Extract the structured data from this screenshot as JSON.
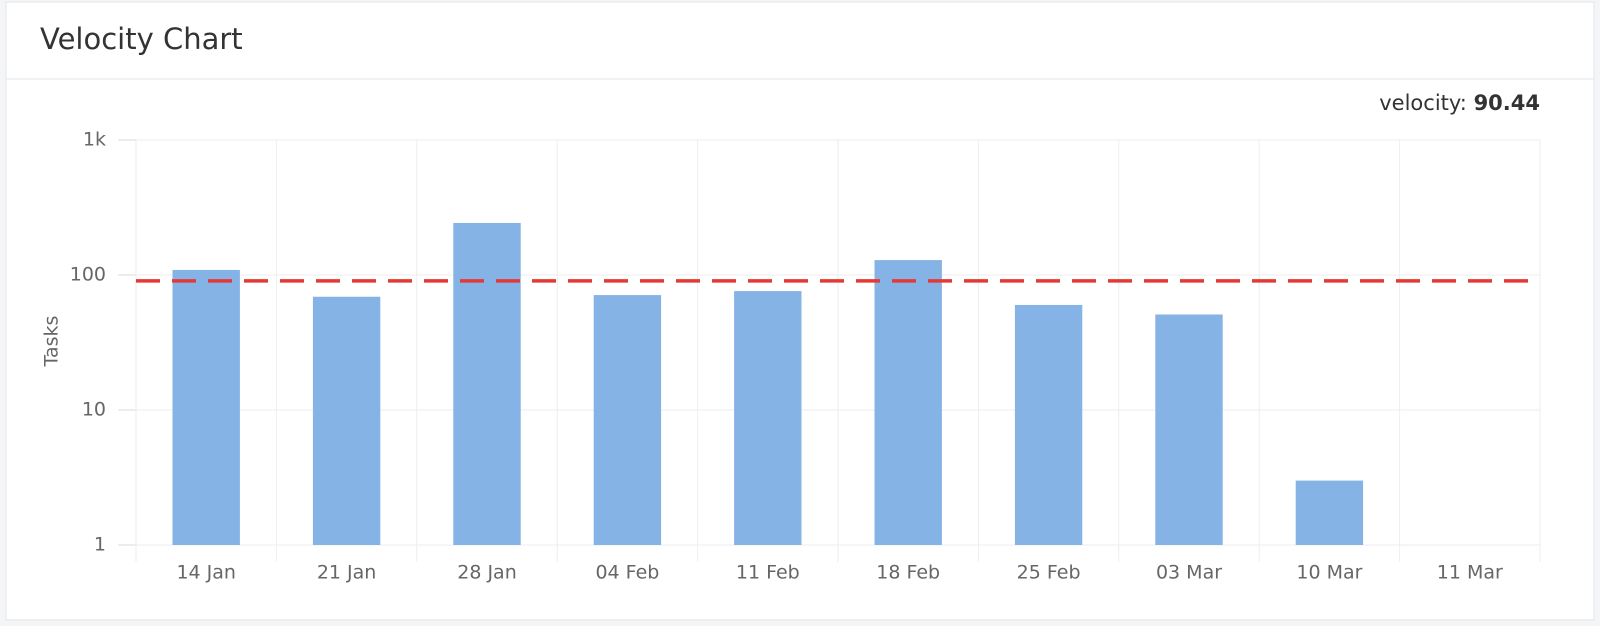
{
  "chart_data": {
    "type": "bar",
    "title": "Velocity Chart",
    "y_label": "Tasks",
    "categories": [
      "14 Jan",
      "21 Jan",
      "28 Jan",
      "04 Feb",
      "11 Feb",
      "18 Feb",
      "25 Feb",
      "03 Mar",
      "10 Mar",
      "11 Mar"
    ],
    "values": [
      109,
      69,
      243,
      71,
      76,
      129,
      60,
      51,
      3,
      null
    ],
    "color": "#86b3e6",
    "log_scale": true,
    "ylim": [
      1,
      1000
    ],
    "yticks": [
      1,
      10,
      100,
      {
        "value": 1000,
        "label": "1k"
      }
    ],
    "grid": true,
    "reference_line": {
      "label": "velocity:",
      "value": 90.44,
      "color": "#e53935"
    }
  }
}
